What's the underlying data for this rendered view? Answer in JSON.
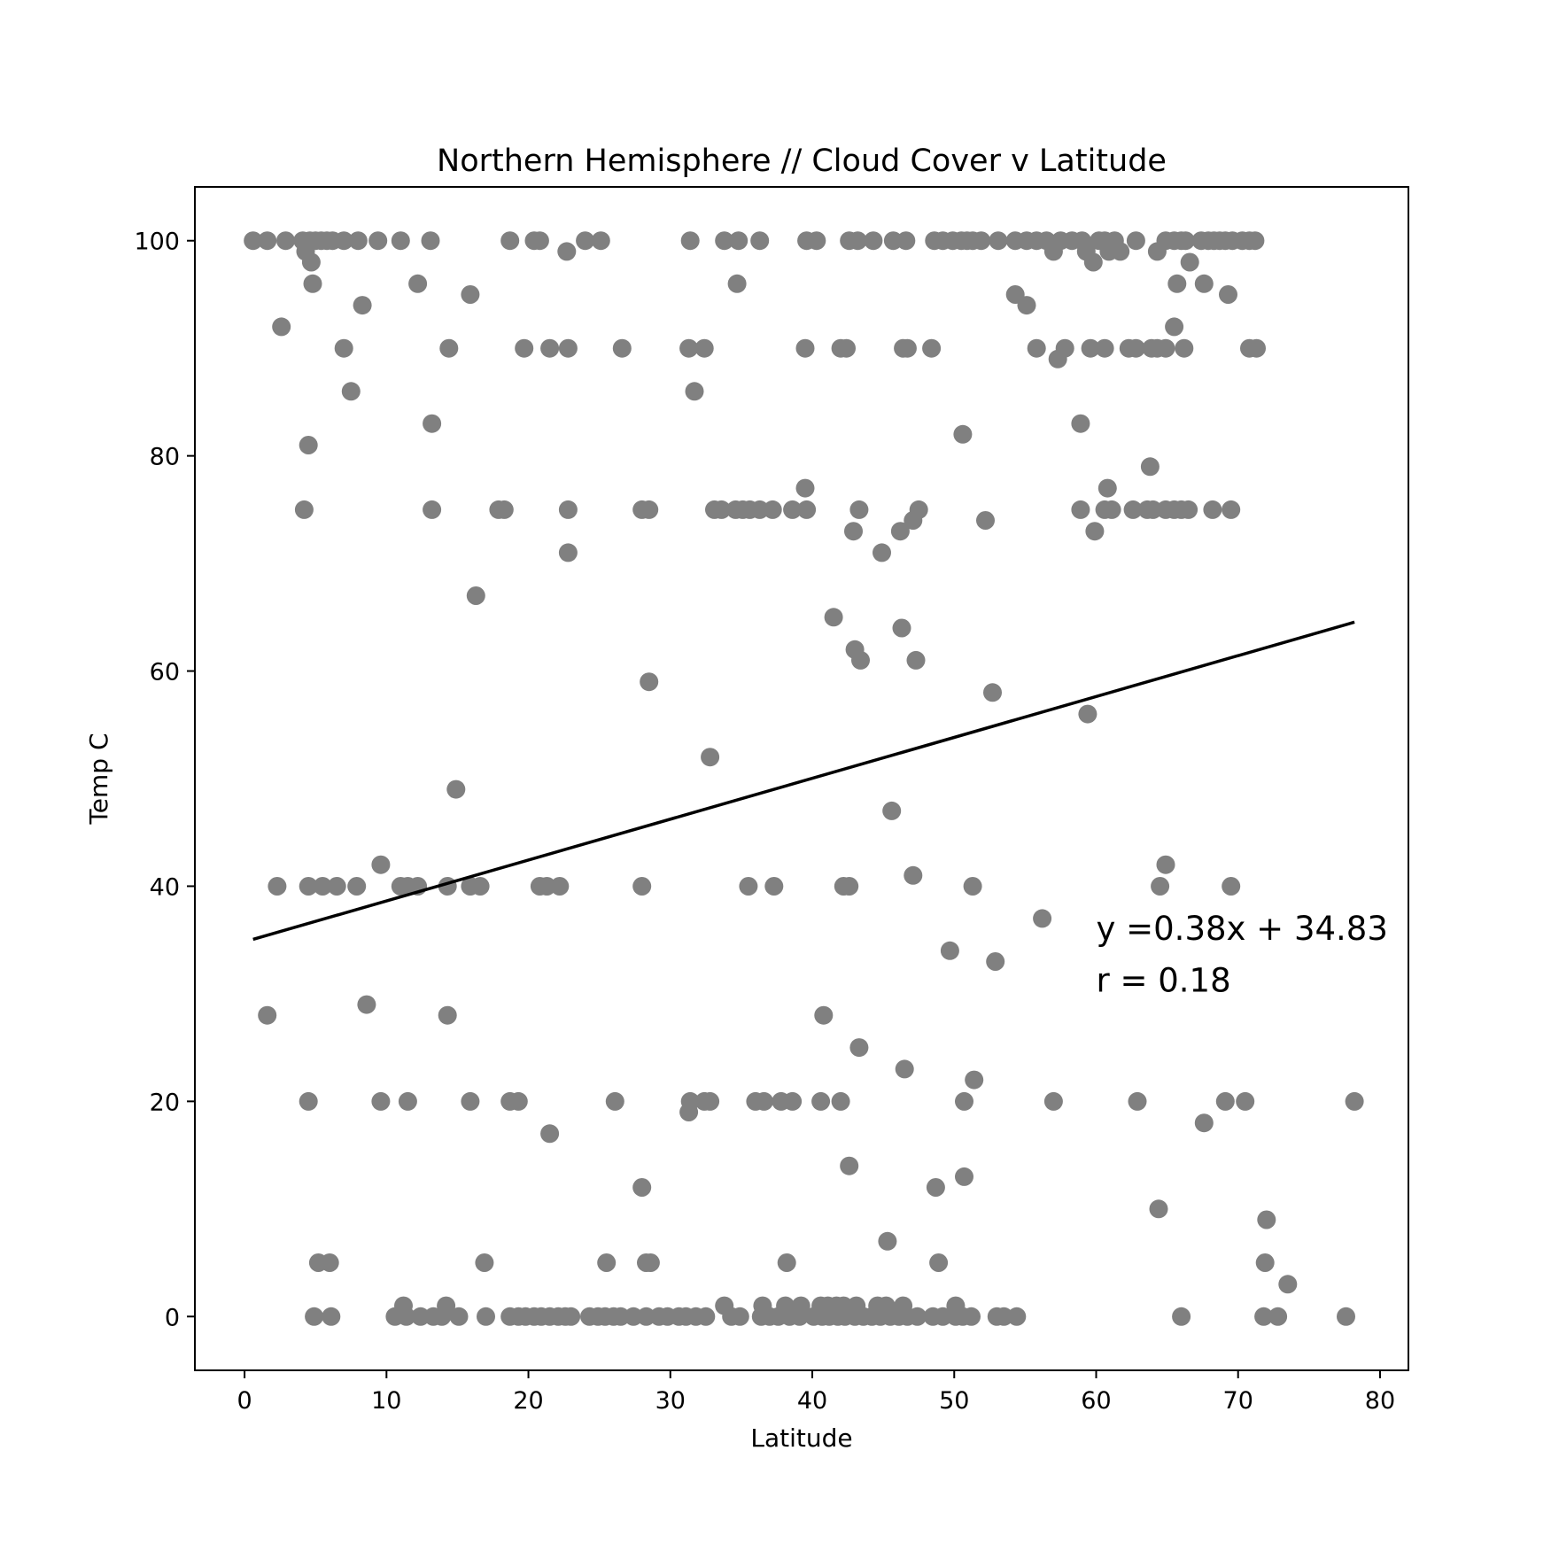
{
  "chart_data": {
    "type": "scatter",
    "title": "Northern Hemisphere // Cloud Cover v Latitude",
    "xlabel": "Latitude",
    "ylabel": "Temp C",
    "xlim": [
      -3.5,
      82
    ],
    "ylim": [
      -5,
      105
    ],
    "xticks": [
      0,
      10,
      20,
      30,
      40,
      50,
      60,
      70,
      80
    ],
    "yticks": [
      0,
      20,
      40,
      60,
      80,
      100
    ],
    "grid": false,
    "point_color": "#808080",
    "line_color": "#000000",
    "regression": {
      "slope": 0.38,
      "intercept": 34.83,
      "x_range": [
        0.6,
        78.2
      ]
    },
    "annotations": [
      {
        "text": "y =0.38x + 34.83",
        "x": 60,
        "y": 35
      },
      {
        "text": "r = 0.18",
        "x": 60,
        "y": 30.2
      }
    ],
    "points": [
      [
        0.6,
        100
      ],
      [
        1.6,
        100
      ],
      [
        2.9,
        100
      ],
      [
        4.1,
        100
      ],
      [
        4.3,
        99
      ],
      [
        4.6,
        100
      ],
      [
        4.7,
        98
      ],
      [
        5.0,
        100
      ],
      [
        5.4,
        100
      ],
      [
        5.8,
        100
      ],
      [
        6.2,
        100
      ],
      [
        7.0,
        100
      ],
      [
        8.0,
        100
      ],
      [
        9.4,
        100
      ],
      [
        11.0,
        100
      ],
      [
        13.1,
        100
      ],
      [
        18.7,
        100
      ],
      [
        20.4,
        100
      ],
      [
        20.8,
        100
      ],
      [
        22.7,
        99
      ],
      [
        24.0,
        100
      ],
      [
        25.1,
        100
      ],
      [
        31.4,
        100
      ],
      [
        33.8,
        100
      ],
      [
        34.8,
        100
      ],
      [
        36.3,
        100
      ],
      [
        39.6,
        100
      ],
      [
        40.3,
        100
      ],
      [
        42.6,
        100
      ],
      [
        43.2,
        100
      ],
      [
        44.3,
        100
      ],
      [
        45.7,
        100
      ],
      [
        46.6,
        100
      ],
      [
        48.6,
        100
      ],
      [
        49.2,
        100
      ],
      [
        49.9,
        100
      ],
      [
        50.5,
        100
      ],
      [
        50.9,
        100
      ],
      [
        51.3,
        100
      ],
      [
        51.9,
        100
      ],
      [
        53.1,
        100
      ],
      [
        54.3,
        100
      ],
      [
        55.1,
        100
      ],
      [
        55.8,
        100
      ],
      [
        56.5,
        100
      ],
      [
        57.0,
        99
      ],
      [
        57.5,
        100
      ],
      [
        58.3,
        100
      ],
      [
        59.0,
        100
      ],
      [
        59.3,
        99
      ],
      [
        59.8,
        98
      ],
      [
        60.2,
        100
      ],
      [
        60.6,
        100
      ],
      [
        60.9,
        99
      ],
      [
        61.3,
        100
      ],
      [
        61.7,
        99
      ],
      [
        62.8,
        100
      ],
      [
        64.3,
        99
      ],
      [
        64.9,
        100
      ],
      [
        65.5,
        100
      ],
      [
        66.0,
        100
      ],
      [
        66.3,
        100
      ],
      [
        66.6,
        98
      ],
      [
        67.4,
        100
      ],
      [
        67.9,
        100
      ],
      [
        68.3,
        100
      ],
      [
        68.7,
        100
      ],
      [
        69.1,
        100
      ],
      [
        69.6,
        100
      ],
      [
        70.3,
        100
      ],
      [
        70.8,
        100
      ],
      [
        71.2,
        100
      ],
      [
        2.6,
        92
      ],
      [
        4.8,
        96
      ],
      [
        8.3,
        94
      ],
      [
        12.2,
        96
      ],
      [
        15.9,
        95
      ],
      [
        34.7,
        96
      ],
      [
        54.3,
        95
      ],
      [
        55.1,
        94
      ],
      [
        65.7,
        96
      ],
      [
        67.6,
        96
      ],
      [
        69.3,
        95
      ],
      [
        65.5,
        92
      ],
      [
        7.0,
        90
      ],
      [
        14.4,
        90
      ],
      [
        19.7,
        90
      ],
      [
        21.5,
        90
      ],
      [
        22.8,
        90
      ],
      [
        26.6,
        90
      ],
      [
        31.3,
        90
      ],
      [
        32.4,
        90
      ],
      [
        39.5,
        90
      ],
      [
        42.0,
        90
      ],
      [
        42.4,
        90
      ],
      [
        46.4,
        90
      ],
      [
        46.7,
        90
      ],
      [
        48.4,
        90
      ],
      [
        55.8,
        90
      ],
      [
        57.8,
        90
      ],
      [
        59.6,
        90
      ],
      [
        60.6,
        90
      ],
      [
        62.3,
        90
      ],
      [
        62.8,
        90
      ],
      [
        63.9,
        90
      ],
      [
        64.3,
        90
      ],
      [
        64.9,
        90
      ],
      [
        66.2,
        90
      ],
      [
        70.8,
        90
      ],
      [
        71.3,
        90
      ],
      [
        57.3,
        89
      ],
      [
        7.5,
        86
      ],
      [
        31.7,
        86
      ],
      [
        13.2,
        83
      ],
      [
        58.9,
        83
      ],
      [
        50.6,
        82
      ],
      [
        4.5,
        81
      ],
      [
        63.8,
        79
      ],
      [
        39.5,
        77
      ],
      [
        60.8,
        77
      ],
      [
        4.2,
        75
      ],
      [
        13.2,
        75
      ],
      [
        17.9,
        75
      ],
      [
        18.3,
        75
      ],
      [
        22.8,
        75
      ],
      [
        28.0,
        75
      ],
      [
        28.5,
        75
      ],
      [
        33.1,
        75
      ],
      [
        33.6,
        75
      ],
      [
        34.6,
        75
      ],
      [
        35.1,
        75
      ],
      [
        35.6,
        75
      ],
      [
        36.3,
        75
      ],
      [
        37.2,
        75
      ],
      [
        38.6,
        75
      ],
      [
        39.6,
        75
      ],
      [
        43.3,
        75
      ],
      [
        47.5,
        75
      ],
      [
        58.9,
        75
      ],
      [
        60.6,
        75
      ],
      [
        61.1,
        75
      ],
      [
        62.6,
        75
      ],
      [
        63.6,
        75
      ],
      [
        64.0,
        75
      ],
      [
        64.9,
        75
      ],
      [
        65.5,
        75
      ],
      [
        66.0,
        75
      ],
      [
        66.5,
        75
      ],
      [
        68.2,
        75
      ],
      [
        69.5,
        75
      ],
      [
        47.1,
        74
      ],
      [
        52.2,
        74
      ],
      [
        42.9,
        73
      ],
      [
        46.2,
        73
      ],
      [
        59.9,
        73
      ],
      [
        22.8,
        71
      ],
      [
        44.9,
        71
      ],
      [
        16.3,
        67
      ],
      [
        41.5,
        65
      ],
      [
        46.3,
        64
      ],
      [
        43.0,
        62
      ],
      [
        43.4,
        61
      ],
      [
        47.3,
        61
      ],
      [
        28.5,
        59
      ],
      [
        52.7,
        58
      ],
      [
        59.4,
        56
      ],
      [
        32.8,
        52
      ],
      [
        14.9,
        49
      ],
      [
        45.6,
        47
      ],
      [
        2.3,
        40
      ],
      [
        4.5,
        40
      ],
      [
        5.5,
        40
      ],
      [
        6.5,
        40
      ],
      [
        7.9,
        40
      ],
      [
        11.0,
        40
      ],
      [
        11.5,
        40
      ],
      [
        12.2,
        40
      ],
      [
        14.3,
        40
      ],
      [
        15.9,
        40
      ],
      [
        16.6,
        40
      ],
      [
        20.8,
        40
      ],
      [
        21.3,
        40
      ],
      [
        22.2,
        40
      ],
      [
        28.0,
        40
      ],
      [
        35.5,
        40
      ],
      [
        37.3,
        40
      ],
      [
        42.2,
        40
      ],
      [
        42.6,
        40
      ],
      [
        51.3,
        40
      ],
      [
        64.5,
        40
      ],
      [
        69.5,
        40
      ],
      [
        9.6,
        42
      ],
      [
        64.9,
        42
      ],
      [
        47.1,
        41
      ],
      [
        56.2,
        37
      ],
      [
        49.7,
        34
      ],
      [
        52.9,
        33
      ],
      [
        1.6,
        28
      ],
      [
        8.6,
        29
      ],
      [
        14.3,
        28
      ],
      [
        40.8,
        28
      ],
      [
        43.3,
        25
      ],
      [
        46.5,
        23
      ],
      [
        51.4,
        22
      ],
      [
        4.5,
        20
      ],
      [
        9.6,
        20
      ],
      [
        11.5,
        20
      ],
      [
        15.9,
        20
      ],
      [
        18.7,
        20
      ],
      [
        19.3,
        20
      ],
      [
        26.1,
        20
      ],
      [
        31.4,
        20
      ],
      [
        32.4,
        20
      ],
      [
        32.8,
        20
      ],
      [
        36.0,
        20
      ],
      [
        36.6,
        20
      ],
      [
        37.8,
        20
      ],
      [
        38.6,
        20
      ],
      [
        40.6,
        20
      ],
      [
        42.0,
        20
      ],
      [
        50.7,
        20
      ],
      [
        57.0,
        20
      ],
      [
        62.9,
        20
      ],
      [
        69.1,
        20
      ],
      [
        70.5,
        20
      ],
      [
        78.2,
        20
      ],
      [
        31.3,
        19
      ],
      [
        67.6,
        18
      ],
      [
        21.5,
        17
      ],
      [
        42.6,
        14
      ],
      [
        50.7,
        13
      ],
      [
        28.0,
        12
      ],
      [
        48.7,
        12
      ],
      [
        64.4,
        10
      ],
      [
        72.0,
        9
      ],
      [
        45.3,
        7
      ],
      [
        5.2,
        5
      ],
      [
        6.0,
        5
      ],
      [
        16.9,
        5
      ],
      [
        25.5,
        5
      ],
      [
        28.3,
        5
      ],
      [
        28.6,
        5
      ],
      [
        38.2,
        5
      ],
      [
        48.9,
        5
      ],
      [
        71.9,
        5
      ],
      [
        73.5,
        3
      ],
      [
        11.2,
        1
      ],
      [
        14.2,
        1
      ],
      [
        33.8,
        1
      ],
      [
        36.5,
        1
      ],
      [
        38.1,
        1
      ],
      [
        39.2,
        1
      ],
      [
        40.6,
        1
      ],
      [
        41.1,
        1
      ],
      [
        41.7,
        1
      ],
      [
        42.2,
        1
      ],
      [
        43.1,
        1
      ],
      [
        44.6,
        1
      ],
      [
        45.2,
        1
      ],
      [
        46.4,
        1
      ],
      [
        50.1,
        1
      ],
      [
        4.9,
        0
      ],
      [
        6.1,
        0
      ],
      [
        10.6,
        0
      ],
      [
        11.4,
        0
      ],
      [
        12.4,
        0
      ],
      [
        13.3,
        0
      ],
      [
        13.9,
        0
      ],
      [
        15.1,
        0
      ],
      [
        17.0,
        0
      ],
      [
        18.7,
        0
      ],
      [
        19.3,
        0
      ],
      [
        19.8,
        0
      ],
      [
        20.4,
        0
      ],
      [
        20.9,
        0
      ],
      [
        21.5,
        0
      ],
      [
        22.1,
        0
      ],
      [
        22.6,
        0
      ],
      [
        23.0,
        0
      ],
      [
        24.3,
        0
      ],
      [
        24.9,
        0
      ],
      [
        25.4,
        0
      ],
      [
        26.0,
        0
      ],
      [
        26.5,
        0
      ],
      [
        27.4,
        0
      ],
      [
        28.3,
        0
      ],
      [
        29.2,
        0
      ],
      [
        29.8,
        0
      ],
      [
        30.6,
        0
      ],
      [
        31.1,
        0
      ],
      [
        31.8,
        0
      ],
      [
        32.5,
        0
      ],
      [
        34.3,
        0
      ],
      [
        34.9,
        0
      ],
      [
        36.4,
        0
      ],
      [
        37.0,
        0
      ],
      [
        37.6,
        0
      ],
      [
        38.4,
        0
      ],
      [
        39.1,
        0
      ],
      [
        40.1,
        0
      ],
      [
        40.7,
        0
      ],
      [
        41.2,
        0
      ],
      [
        41.8,
        0
      ],
      [
        42.3,
        0
      ],
      [
        43.0,
        0
      ],
      [
        43.6,
        0
      ],
      [
        44.2,
        0
      ],
      [
        44.8,
        0
      ],
      [
        45.5,
        0
      ],
      [
        46.1,
        0
      ],
      [
        46.7,
        0
      ],
      [
        47.4,
        0
      ],
      [
        48.5,
        0
      ],
      [
        49.2,
        0
      ],
      [
        50.1,
        0
      ],
      [
        50.6,
        0
      ],
      [
        51.2,
        0
      ],
      [
        53.0,
        0
      ],
      [
        53.5,
        0
      ],
      [
        54.4,
        0
      ],
      [
        66.0,
        0
      ],
      [
        71.8,
        0
      ],
      [
        72.8,
        0
      ],
      [
        77.6,
        0
      ]
    ]
  }
}
